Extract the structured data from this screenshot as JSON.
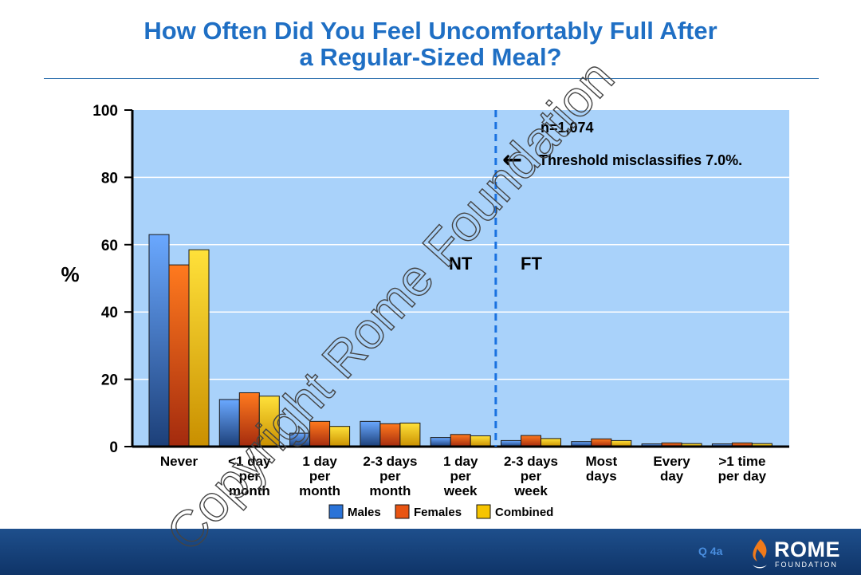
{
  "title_line1": "How Often Did You Feel Uncomfortably Full After",
  "title_line2": "a Regular-Sized Meal?",
  "footer": {
    "slide_id": "Q 4a",
    "logo_text": "ROME",
    "logo_sub": "FOUNDATION"
  },
  "watermark": "Copyright Rome Foundation",
  "colors": {
    "males": "#2a73d8",
    "females": "#e85412",
    "combined": "#f6c400",
    "plot_bg": "#a9d2fa",
    "title": "#1f6fc4"
  },
  "chart_data": {
    "type": "bar",
    "title": "",
    "ylabel": "%",
    "xlabel": "",
    "ylim": [
      0,
      100
    ],
    "yticks": [
      0,
      20,
      40,
      60,
      80,
      100
    ],
    "grid": true,
    "categories": [
      [
        "Never"
      ],
      [
        "<1 day",
        "per",
        "month"
      ],
      [
        "1 day",
        "per",
        "month"
      ],
      [
        "2-3 days",
        "per",
        "month"
      ],
      [
        "1 day",
        "per",
        "week"
      ],
      [
        "2-3 days",
        "per",
        "week"
      ],
      [
        "Most",
        "days"
      ],
      [
        "Every",
        "day"
      ],
      [
        ">1 time",
        "per day"
      ]
    ],
    "series": [
      {
        "name": "Males",
        "values": [
          63,
          14,
          4,
          7.5,
          2.7,
          1.8,
          1.5,
          0.8,
          0.8
        ]
      },
      {
        "name": "Females",
        "values": [
          54,
          16,
          7.5,
          6.8,
          3.6,
          3.3,
          2.3,
          1.1,
          1.1
        ]
      },
      {
        "name": "Combined",
        "values": [
          58.5,
          15,
          6,
          7,
          3.2,
          2.4,
          1.8,
          0.9,
          0.9
        ]
      }
    ],
    "annotations": {
      "n_text": "n=1,074",
      "threshold_text": "Threshold misclassifies 7.0%.",
      "arrow": "←",
      "left_region": "NT",
      "right_region": "FT",
      "threshold_after_category": 5
    },
    "legend": "bottom"
  }
}
